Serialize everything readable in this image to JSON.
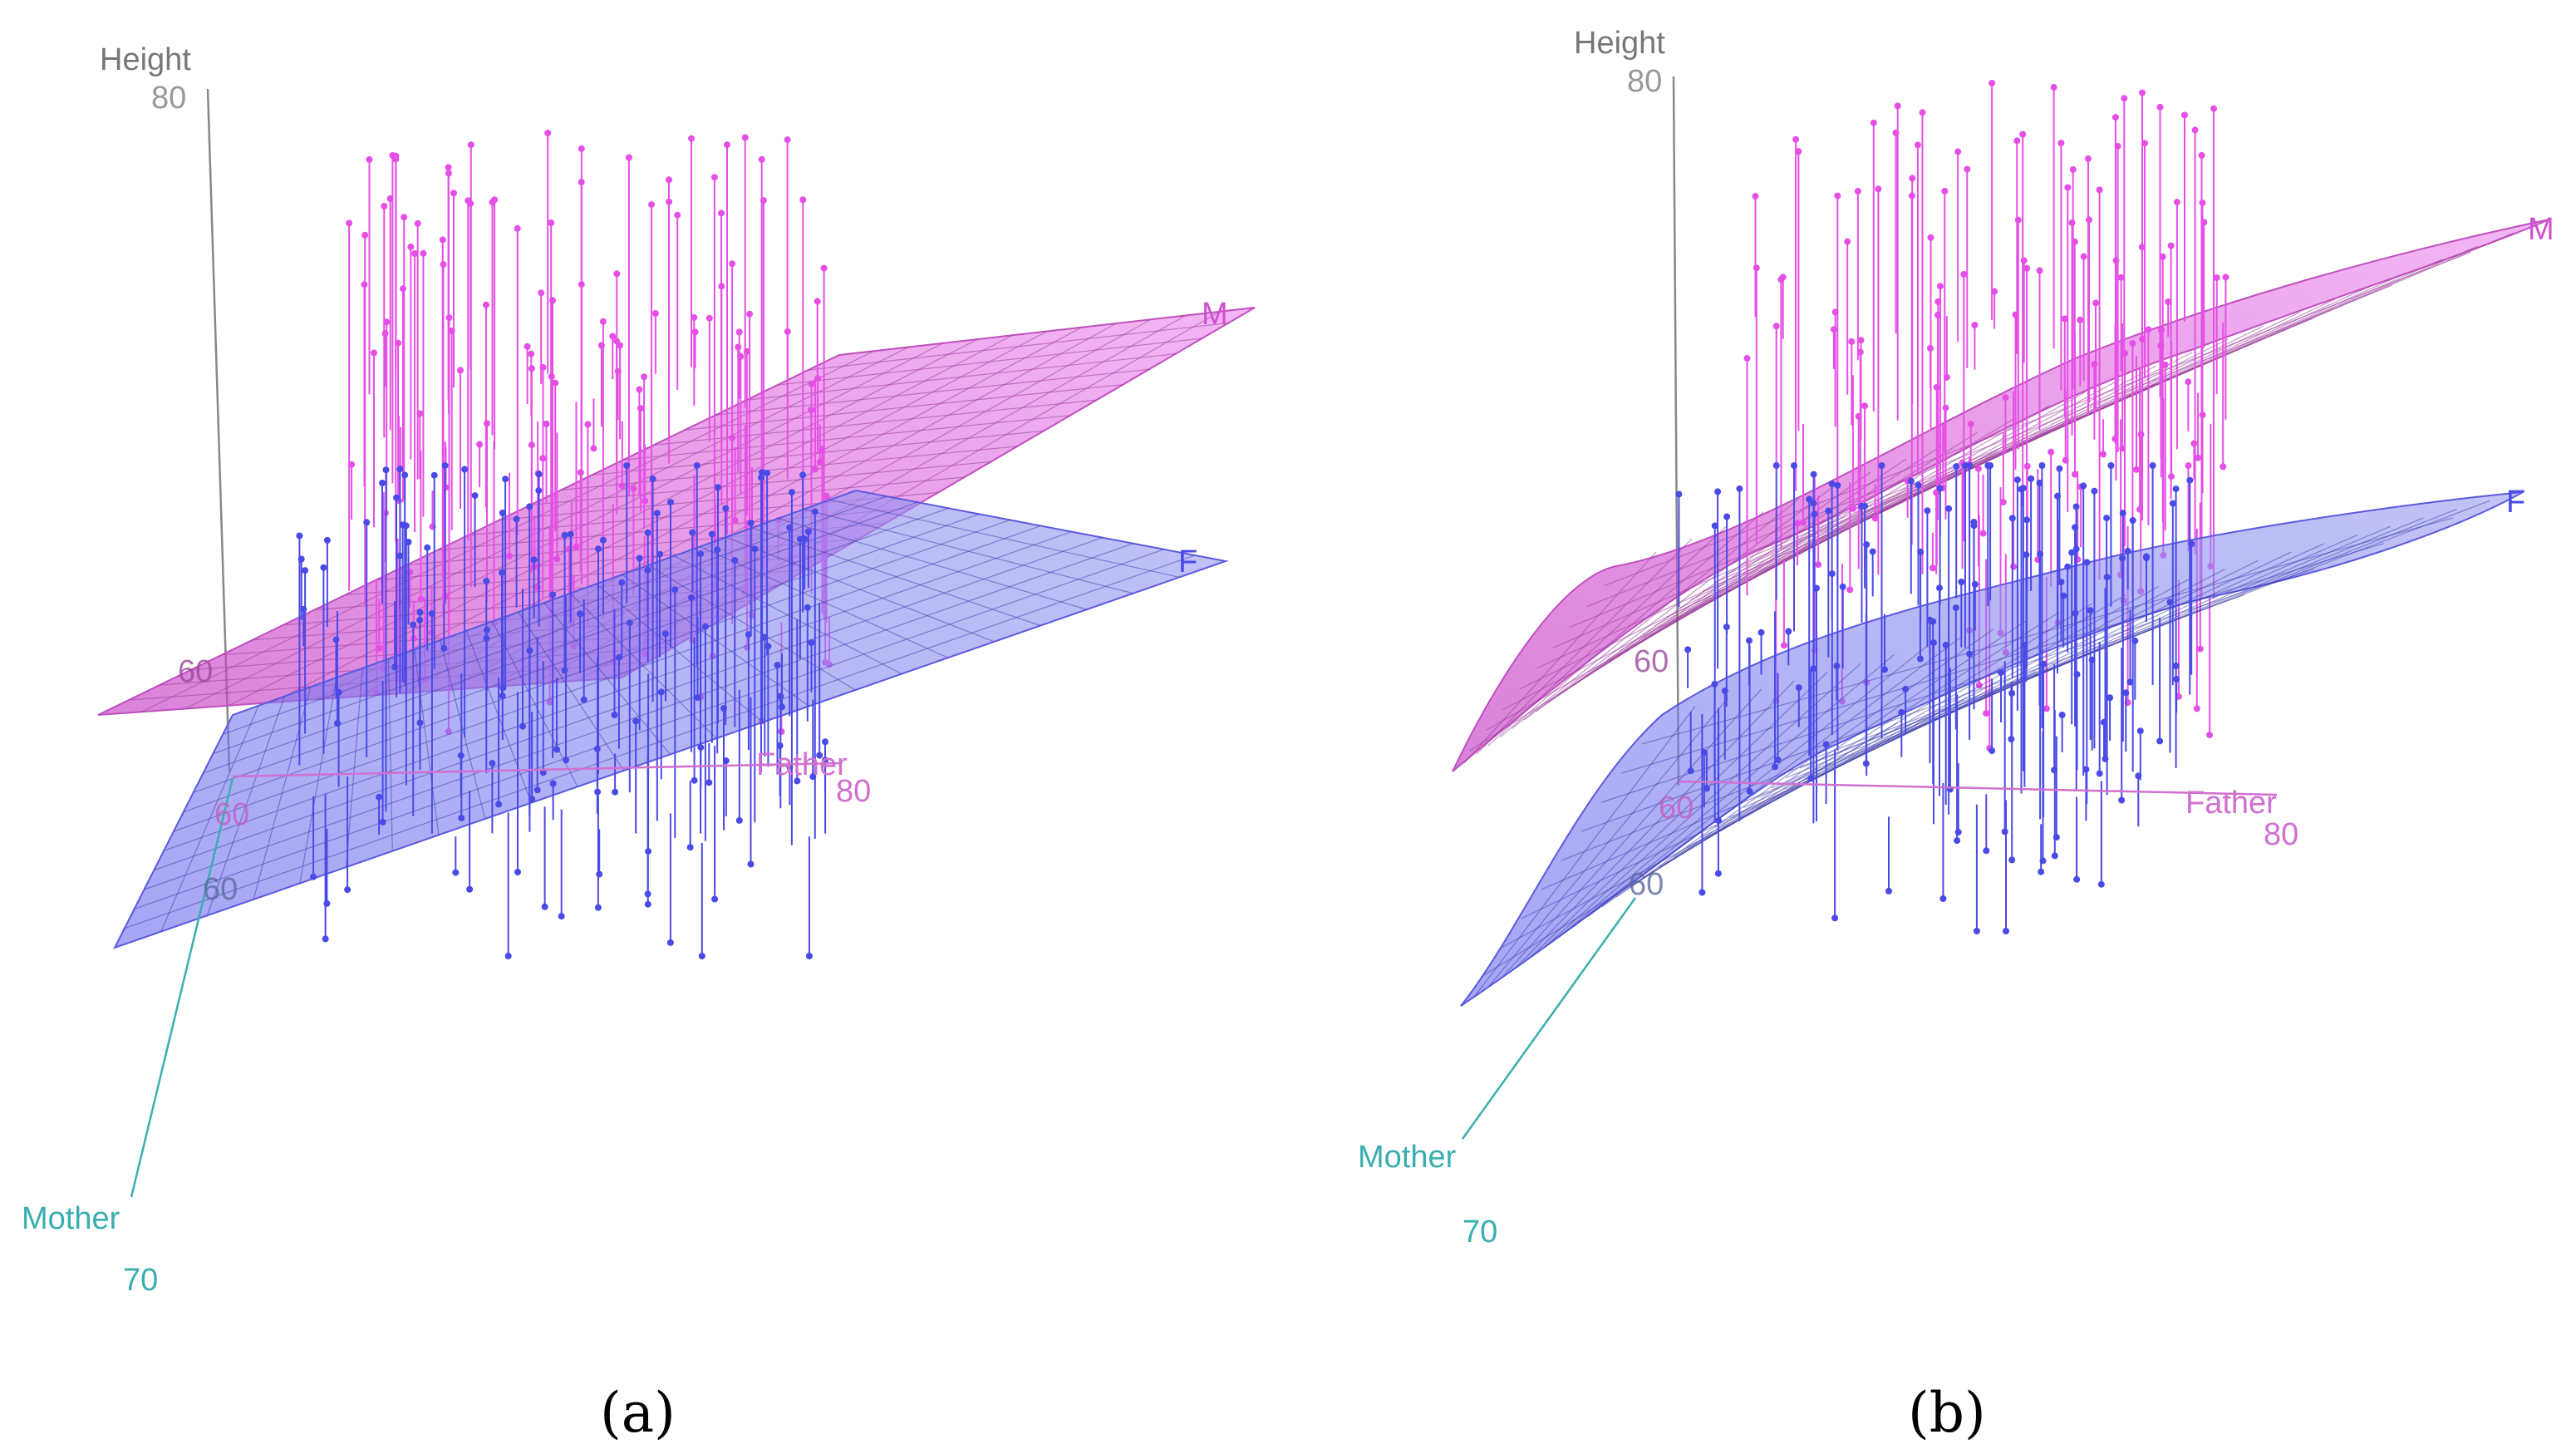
{
  "figure": {
    "panels": [
      "(a)",
      "(b)"
    ]
  },
  "chart_data": [
    {
      "type": "scatter",
      "subtype": "3d-scatter-with-regression-planes",
      "panel": "(a)",
      "surface_model": "linear",
      "axes": {
        "z": {
          "label": "Height",
          "ticks": [
            "80",
            "60"
          ]
        },
        "x": {
          "label": "Father",
          "ticks": [
            "60",
            "80"
          ]
        },
        "y": {
          "label": "Mother",
          "ticks": [
            "60",
            "70"
          ]
        }
      },
      "groups": [
        {
          "name": "M",
          "color": "#e64fe6",
          "plane": "linear"
        },
        {
          "name": "F",
          "color": "#4a4ae6",
          "plane": "linear"
        }
      ],
      "colors": {
        "height_axis": "#888888",
        "father_axis": "#d070d0",
        "mother_axis": "#3aaeae"
      }
    },
    {
      "type": "scatter",
      "subtype": "3d-scatter-with-regression-surfaces",
      "panel": "(b)",
      "surface_model": "nonlinear",
      "axes": {
        "z": {
          "label": "Height",
          "ticks": [
            "80",
            "60"
          ]
        },
        "x": {
          "label": "Father",
          "ticks": [
            "60",
            "80"
          ]
        },
        "y": {
          "label": "Mother",
          "ticks": [
            "60",
            "70"
          ]
        }
      },
      "groups": [
        {
          "name": "M",
          "color": "#e64fe6",
          "plane": "smooth"
        },
        {
          "name": "F",
          "color": "#4a4ae6",
          "plane": "smooth"
        }
      ],
      "colors": {
        "height_axis": "#888888",
        "father_axis": "#d070d0",
        "mother_axis": "#3aaeae"
      }
    }
  ]
}
